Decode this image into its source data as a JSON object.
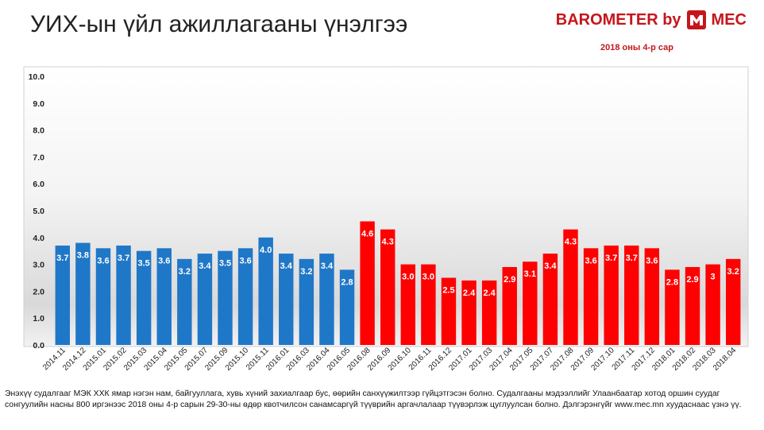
{
  "header": {
    "title": "УИХ-ын үйл ажиллагааны үнэлгээ",
    "brand": "BAROMETER by",
    "brand_logo": "MEC logo",
    "brand_suffix": "MEC",
    "subtitle": "2018 оны 4-р сар",
    "brand_color": "#c4161c"
  },
  "footnote": "Энэхүү судалгааг МЭК ХХК ямар нэгэн нам, байгууллага, хувь хүний захиалгаар бус, өөрийн санхүүжилтээр гүйцэтгэсэн болно. Судалгааны мэдээллийг Улаанбаатар хотод оршин суудаг сонгуулийн насны 800 иргэнээс 2018 оны 4-р сарын 29-30-ны өдөр квотчилсон санамсаргүй түүврийн аргачлалаар түүвэрлэж цуглуулсан болно. Дэлгэрэнгүйг www.mec.mn хуудаснаас үзнэ үү.",
  "chart_data": {
    "type": "bar",
    "title": "УИХ-ын үйл ажиллагааны үнэлгээ",
    "xlabel": "",
    "ylabel": "",
    "ylim": [
      0,
      10
    ],
    "yticks": [
      "0.0",
      "1.0",
      "2.0",
      "3.0",
      "4.0",
      "5.0",
      "6.0",
      "7.0",
      "8.0",
      "9.0",
      "10.0"
    ],
    "grid": false,
    "legend": "none",
    "categories": [
      "2014.11",
      "2014.12",
      "2015.01",
      "2015.02",
      "2015.03",
      "2015.04",
      "2015.05",
      "2015.07",
      "2015.09",
      "2015.10",
      "2015.11",
      "2016.01",
      "2016.03",
      "2016.04",
      "2016.05",
      "2016.08",
      "2016.09",
      "2016.10",
      "2016.11",
      "2016.12",
      "2017.01",
      "2017.03",
      "2017.04",
      "2017.05",
      "2017.07",
      "2017.08",
      "2017.09",
      "2017.10",
      "2017.11",
      "2017.12",
      "2018.01",
      "2018.02",
      "2018.03",
      "2018.04"
    ],
    "values": [
      3.7,
      3.8,
      3.6,
      3.7,
      3.5,
      3.6,
      3.2,
      3.4,
      3.5,
      3.6,
      4.0,
      3.4,
      3.2,
      3.4,
      2.8,
      4.6,
      4.3,
      3.0,
      3.0,
      2.5,
      2.4,
      2.4,
      2.9,
      3.1,
      3.4,
      4.3,
      3.6,
      3.7,
      3.7,
      3.6,
      2.8,
      2.9,
      3,
      3.2
    ],
    "labels": [
      "3.7",
      "3.8",
      "3.6",
      "3.7",
      "3.5",
      "3.6",
      "3.2",
      "3.4",
      "3.5",
      "3.6",
      "4.0",
      "3.4",
      "3.2",
      "3.4",
      "2.8",
      "4.6",
      "4.3",
      "3.0",
      "3.0",
      "2.5",
      "2.4",
      "2.4",
      "2.9",
      "3.1",
      "3.4",
      "4.3",
      "3.6",
      "3.7",
      "3.7",
      "3.6",
      "2.8",
      "2.9",
      "3",
      "3.2"
    ],
    "bar_colors": [
      "#1f77c8",
      "#1f77c8",
      "#1f77c8",
      "#1f77c8",
      "#1f77c8",
      "#1f77c8",
      "#1f77c8",
      "#1f77c8",
      "#1f77c8",
      "#1f77c8",
      "#1f77c8",
      "#1f77c8",
      "#1f77c8",
      "#1f77c8",
      "#1f77c8",
      "#ff0000",
      "#ff0000",
      "#ff0000",
      "#ff0000",
      "#ff0000",
      "#ff0000",
      "#ff0000",
      "#ff0000",
      "#ff0000",
      "#ff0000",
      "#ff0000",
      "#ff0000",
      "#ff0000",
      "#ff0000",
      "#ff0000",
      "#ff0000",
      "#ff0000",
      "#ff0000",
      "#ff0000"
    ]
  }
}
